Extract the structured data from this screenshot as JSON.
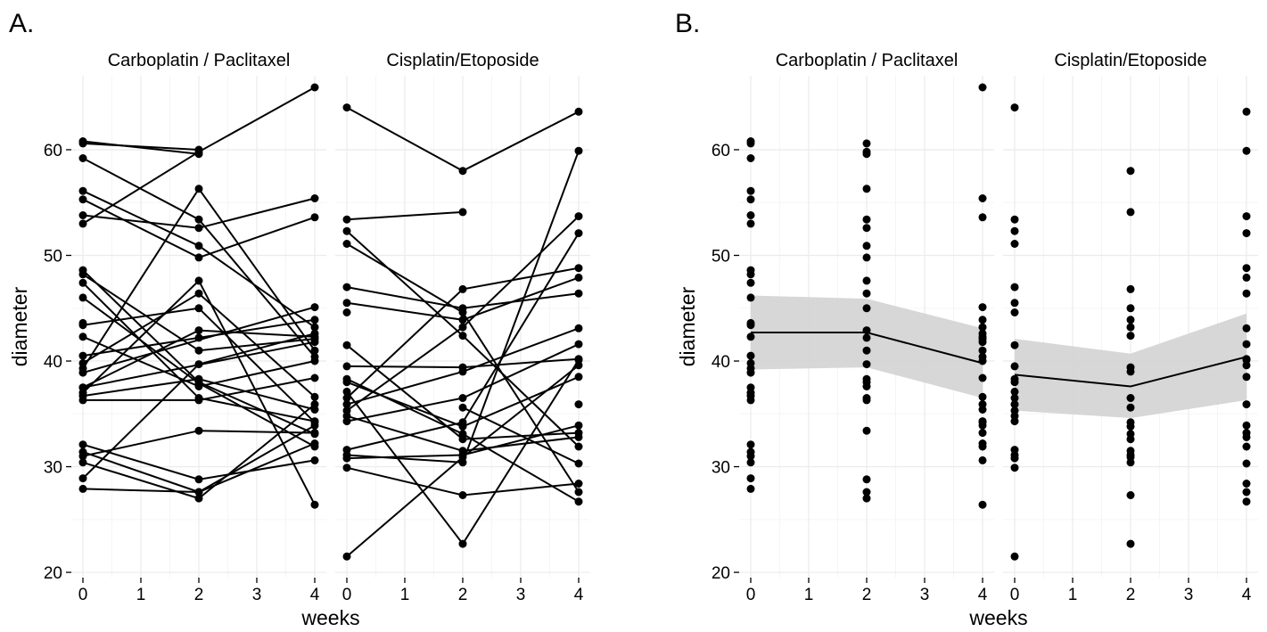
{
  "chart_data": [
    {
      "panel_label": "A.",
      "type": "line",
      "facets": [
        "Carboplatin / Paclitaxel",
        "Cisplatin/Etoposide"
      ],
      "xlabel": "weeks",
      "ylabel": "diameter",
      "x_ticks": [
        0,
        1,
        2,
        3,
        4
      ],
      "y_ticks": [
        20,
        30,
        40,
        50,
        60
      ],
      "xlim": [
        -0.2,
        4.2
      ],
      "ylim": [
        19.5,
        67
      ],
      "grid": true,
      "panels": [
        {
          "facet": "Carboplatin / Paclitaxel",
          "series": [
            {
              "x": [
                0,
                2
              ],
              "y": [
                60.8,
                59.6
              ]
            },
            {
              "x": [
                0,
                2
              ],
              "y": [
                60.6,
                60.0
              ]
            },
            {
              "x": [
                0,
                2,
                4
              ],
              "y": [
                53.0,
                59.8,
                65.9
              ]
            },
            {
              "x": [
                0,
                2,
                4
              ],
              "y": [
                59.2,
                53.4,
                40.4
              ]
            },
            {
              "x": [
                0,
                2,
                4
              ],
              "y": [
                56.1,
                50.9,
                43.2
              ]
            },
            {
              "x": [
                0,
                2,
                4
              ],
              "y": [
                55.3,
                49.8,
                53.6
              ]
            },
            {
              "x": [
                0,
                2,
                4
              ],
              "y": [
                53.8,
                52.6,
                55.4
              ]
            },
            {
              "x": [
                0,
                2,
                4
              ],
              "y": [
                48.6,
                38.0,
                33.1
              ]
            },
            {
              "x": [
                0,
                2,
                4
              ],
              "y": [
                48.2,
                41.0,
                42.1
              ]
            },
            {
              "x": [
                0,
                2,
                4
              ],
              "y": [
                47.4,
                36.5,
                34.3
              ]
            },
            {
              "x": [
                0,
                2,
                4
              ],
              "y": [
                46.0,
                37.9,
                31.9
              ]
            },
            {
              "x": [
                0,
                2,
                4
              ],
              "y": [
                43.4,
                45.0,
                34.2
              ]
            },
            {
              "x": [
                0,
                2,
                4
              ],
              "y": [
                42.3,
                37.6,
                40.0
              ]
            },
            {
              "x": [
                0,
                2,
                4
              ],
              "y": [
                40.5,
                42.2,
                43.9
              ]
            },
            {
              "x": [
                0,
                2,
                4
              ],
              "y": [
                39.8,
                46.4,
                36.6
              ]
            },
            {
              "x": [
                0,
                2,
                4
              ],
              "y": [
                39.3,
                56.3,
                41.0
              ]
            },
            {
              "x": [
                0,
                2,
                4
              ],
              "y": [
                37.5,
                42.9,
                42.3
              ]
            },
            {
              "x": [
                0,
                2,
                4
              ],
              "y": [
                37.0,
                47.6,
                26.4
              ]
            },
            {
              "x": [
                0,
                2,
                4
              ],
              "y": [
                36.7,
                38.3,
                35.4
              ]
            },
            {
              "x": [
                0,
                2,
                4
              ],
              "y": [
                36.3,
                36.3,
                38.4
              ]
            },
            {
              "x": [
                0,
                2,
                4
              ],
              "y": [
                32.1,
                28.8,
                30.6
              ]
            },
            {
              "x": [
                0,
                2,
                4
              ],
              "y": [
                31.4,
                27.6,
                32.2
              ]
            },
            {
              "x": [
                0,
                2,
                4
              ],
              "y": [
                31.0,
                33.4,
                33.2
              ]
            },
            {
              "x": [
                0,
                2,
                4
              ],
              "y": [
                30.4,
                27.0,
                35.9
              ]
            },
            {
              "x": [
                0,
                2,
                4
              ],
              "y": [
                28.9,
                39.7,
                42.6
              ]
            },
            {
              "x": [
                0,
                2,
                4
              ],
              "y": [
                27.9,
                27.6,
                33.9
              ]
            },
            {
              "x": [
                0,
                4
              ],
              "y": [
                38.9,
                45.1
              ]
            },
            {
              "x": [
                0,
                4
              ],
              "y": [
                37.5,
                41.8
              ]
            },
            {
              "x": [
                0
              ],
              "y": [
                43.6
              ]
            }
          ]
        },
        {
          "facet": "Cisplatin/Etoposide",
          "series": [
            {
              "x": [
                0,
                2,
                4
              ],
              "y": [
                64.0,
                58.0,
                63.6
              ]
            },
            {
              "x": [
                0,
                2
              ],
              "y": [
                53.4,
                54.1
              ]
            },
            {
              "x": [
                0,
                2,
                4
              ],
              "y": [
                52.3,
                42.4,
                31.9
              ]
            },
            {
              "x": [
                0,
                2,
                4
              ],
              "y": [
                51.1,
                44.6,
                27.6
              ]
            },
            {
              "x": [
                0,
                2,
                4
              ],
              "y": [
                47.0,
                45.0,
                46.4
              ]
            },
            {
              "x": [
                0,
                2,
                4
              ],
              "y": [
                45.5,
                43.9,
                47.9
              ]
            },
            {
              "x": [
                0,
                2,
                4
              ],
              "y": [
                41.5,
                32.6,
                33.2
              ]
            },
            {
              "x": [
                0,
                2,
                4
              ],
              "y": [
                39.5,
                39.4,
                40.2
              ]
            },
            {
              "x": [
                0,
                2,
                4
              ],
              "y": [
                38.3,
                33.1,
                26.7
              ]
            },
            {
              "x": [
                0,
                2,
                4
              ],
              "y": [
                38.0,
                33.8,
                38.5
              ]
            },
            {
              "x": [
                0,
                2,
                4
              ],
              "y": [
                37.1,
                22.7,
                40.1
              ]
            },
            {
              "x": [
                0,
                2,
                4
              ],
              "y": [
                36.5,
                46.8,
                48.8
              ]
            },
            {
              "x": [
                0,
                2,
                4
              ],
              "y": [
                35.9,
                39.0,
                43.1
              ]
            },
            {
              "x": [
                0,
                2,
                4
              ],
              "y": [
                35.3,
                43.2,
                53.7
              ]
            },
            {
              "x": [
                0,
                2,
                4
              ],
              "y": [
                34.8,
                31.5,
                32.8
              ]
            },
            {
              "x": [
                0,
                2,
                4
              ],
              "y": [
                34.3,
                36.5,
                41.6
              ]
            },
            {
              "x": [
                0,
                2,
                4
              ],
              "y": [
                31.6,
                34.2,
                52.1
              ]
            },
            {
              "x": [
                0,
                2,
                4
              ],
              "y": [
                31.1,
                30.4,
                59.9
              ]
            },
            {
              "x": [
                0,
                2,
                4
              ],
              "y": [
                30.8,
                31.1,
                33.9
              ]
            },
            {
              "x": [
                0,
                2,
                4
              ],
              "y": [
                29.9,
                27.3,
                28.4
              ]
            },
            {
              "x": [
                0,
                2,
                4
              ],
              "y": [
                21.5,
                30.9,
                39.6
              ]
            },
            {
              "x": [
                2,
                4
              ],
              "y": [
                35.6,
                30.3
              ]
            },
            {
              "x": [
                0
              ],
              "y": [
                44.6
              ]
            },
            {
              "x": [
                4
              ],
              "y": [
                35.9
              ]
            }
          ]
        }
      ]
    },
    {
      "panel_label": "B.",
      "type": "scatter",
      "facets": [
        "Carboplatin / Paclitaxel",
        "Cisplatin/Etoposide"
      ],
      "xlabel": "weeks",
      "ylabel": "diameter",
      "x_ticks": [
        0,
        1,
        2,
        3,
        4
      ],
      "y_ticks": [
        20,
        30,
        40,
        50,
        60
      ],
      "xlim": [
        -0.2,
        4.2
      ],
      "ylim": [
        19.5,
        67
      ],
      "grid": true,
      "panels": [
        {
          "facet": "Carboplatin / Paclitaxel",
          "points": [
            {
              "x": 0,
              "y": [
                60.8,
                60.6,
                59.2,
                56.1,
                55.3,
                53.8,
                53.0,
                48.6,
                48.2,
                47.4,
                46.0,
                43.6,
                43.4,
                42.3,
                40.5,
                39.8,
                39.3,
                38.9,
                37.5,
                37.0,
                36.7,
                36.3,
                32.1,
                31.4,
                31.0,
                30.4,
                28.9,
                27.9
              ]
            },
            {
              "x": 2,
              "y": [
                60.6,
                59.8,
                59.6,
                56.3,
                53.4,
                52.6,
                50.9,
                49.8,
                47.6,
                46.4,
                45.0,
                42.9,
                42.2,
                41.0,
                39.7,
                38.3,
                38.0,
                37.6,
                36.5,
                36.3,
                33.4,
                28.8,
                27.6,
                27.0
              ]
            },
            {
              "x": 4,
              "y": [
                65.9,
                55.4,
                53.6,
                45.1,
                43.9,
                43.2,
                42.6,
                42.3,
                42.1,
                41.8,
                41.0,
                40.4,
                40.0,
                38.4,
                36.6,
                35.9,
                35.4,
                34.3,
                34.2,
                33.9,
                33.2,
                32.2,
                31.9,
                30.6,
                26.4
              ]
            }
          ],
          "mean_line": {
            "x": [
              0,
              2,
              4
            ],
            "y": [
              42.7,
              42.7,
              39.8
            ]
          },
          "ci_band": {
            "x": [
              0,
              2,
              4
            ],
            "lower": [
              39.2,
              39.4,
              36.5
            ],
            "upper": [
              46.2,
              45.9,
              43.1
            ]
          }
        },
        {
          "facet": "Cisplatin/Etoposide",
          "points": [
            {
              "x": 0,
              "y": [
                64.0,
                53.4,
                52.3,
                51.1,
                47.0,
                45.5,
                44.6,
                41.5,
                39.5,
                38.3,
                38.0,
                37.1,
                36.5,
                35.9,
                35.3,
                34.8,
                34.3,
                31.6,
                31.1,
                30.8,
                29.9,
                21.5
              ]
            },
            {
              "x": 2,
              "y": [
                58.0,
                54.1,
                46.8,
                45.0,
                43.9,
                43.2,
                42.4,
                39.4,
                39.0,
                36.5,
                35.6,
                34.2,
                33.8,
                33.1,
                32.6,
                31.5,
                31.1,
                30.9,
                30.4,
                27.3,
                22.7
              ]
            },
            {
              "x": 4,
              "y": [
                63.6,
                59.9,
                53.7,
                52.1,
                48.8,
                47.9,
                46.4,
                43.1,
                41.6,
                40.2,
                40.1,
                39.6,
                38.5,
                35.9,
                33.9,
                33.2,
                32.8,
                31.9,
                30.3,
                28.4,
                27.6,
                26.7
              ]
            }
          ],
          "mean_line": {
            "x": [
              0,
              2,
              4
            ],
            "y": [
              38.7,
              37.6,
              40.4
            ]
          },
          "ci_band": {
            "x": [
              0,
              2,
              4
            ],
            "lower": [
              35.3,
              34.6,
              36.3
            ],
            "upper": [
              42.1,
              40.7,
              44.5
            ]
          }
        }
      ]
    }
  ]
}
